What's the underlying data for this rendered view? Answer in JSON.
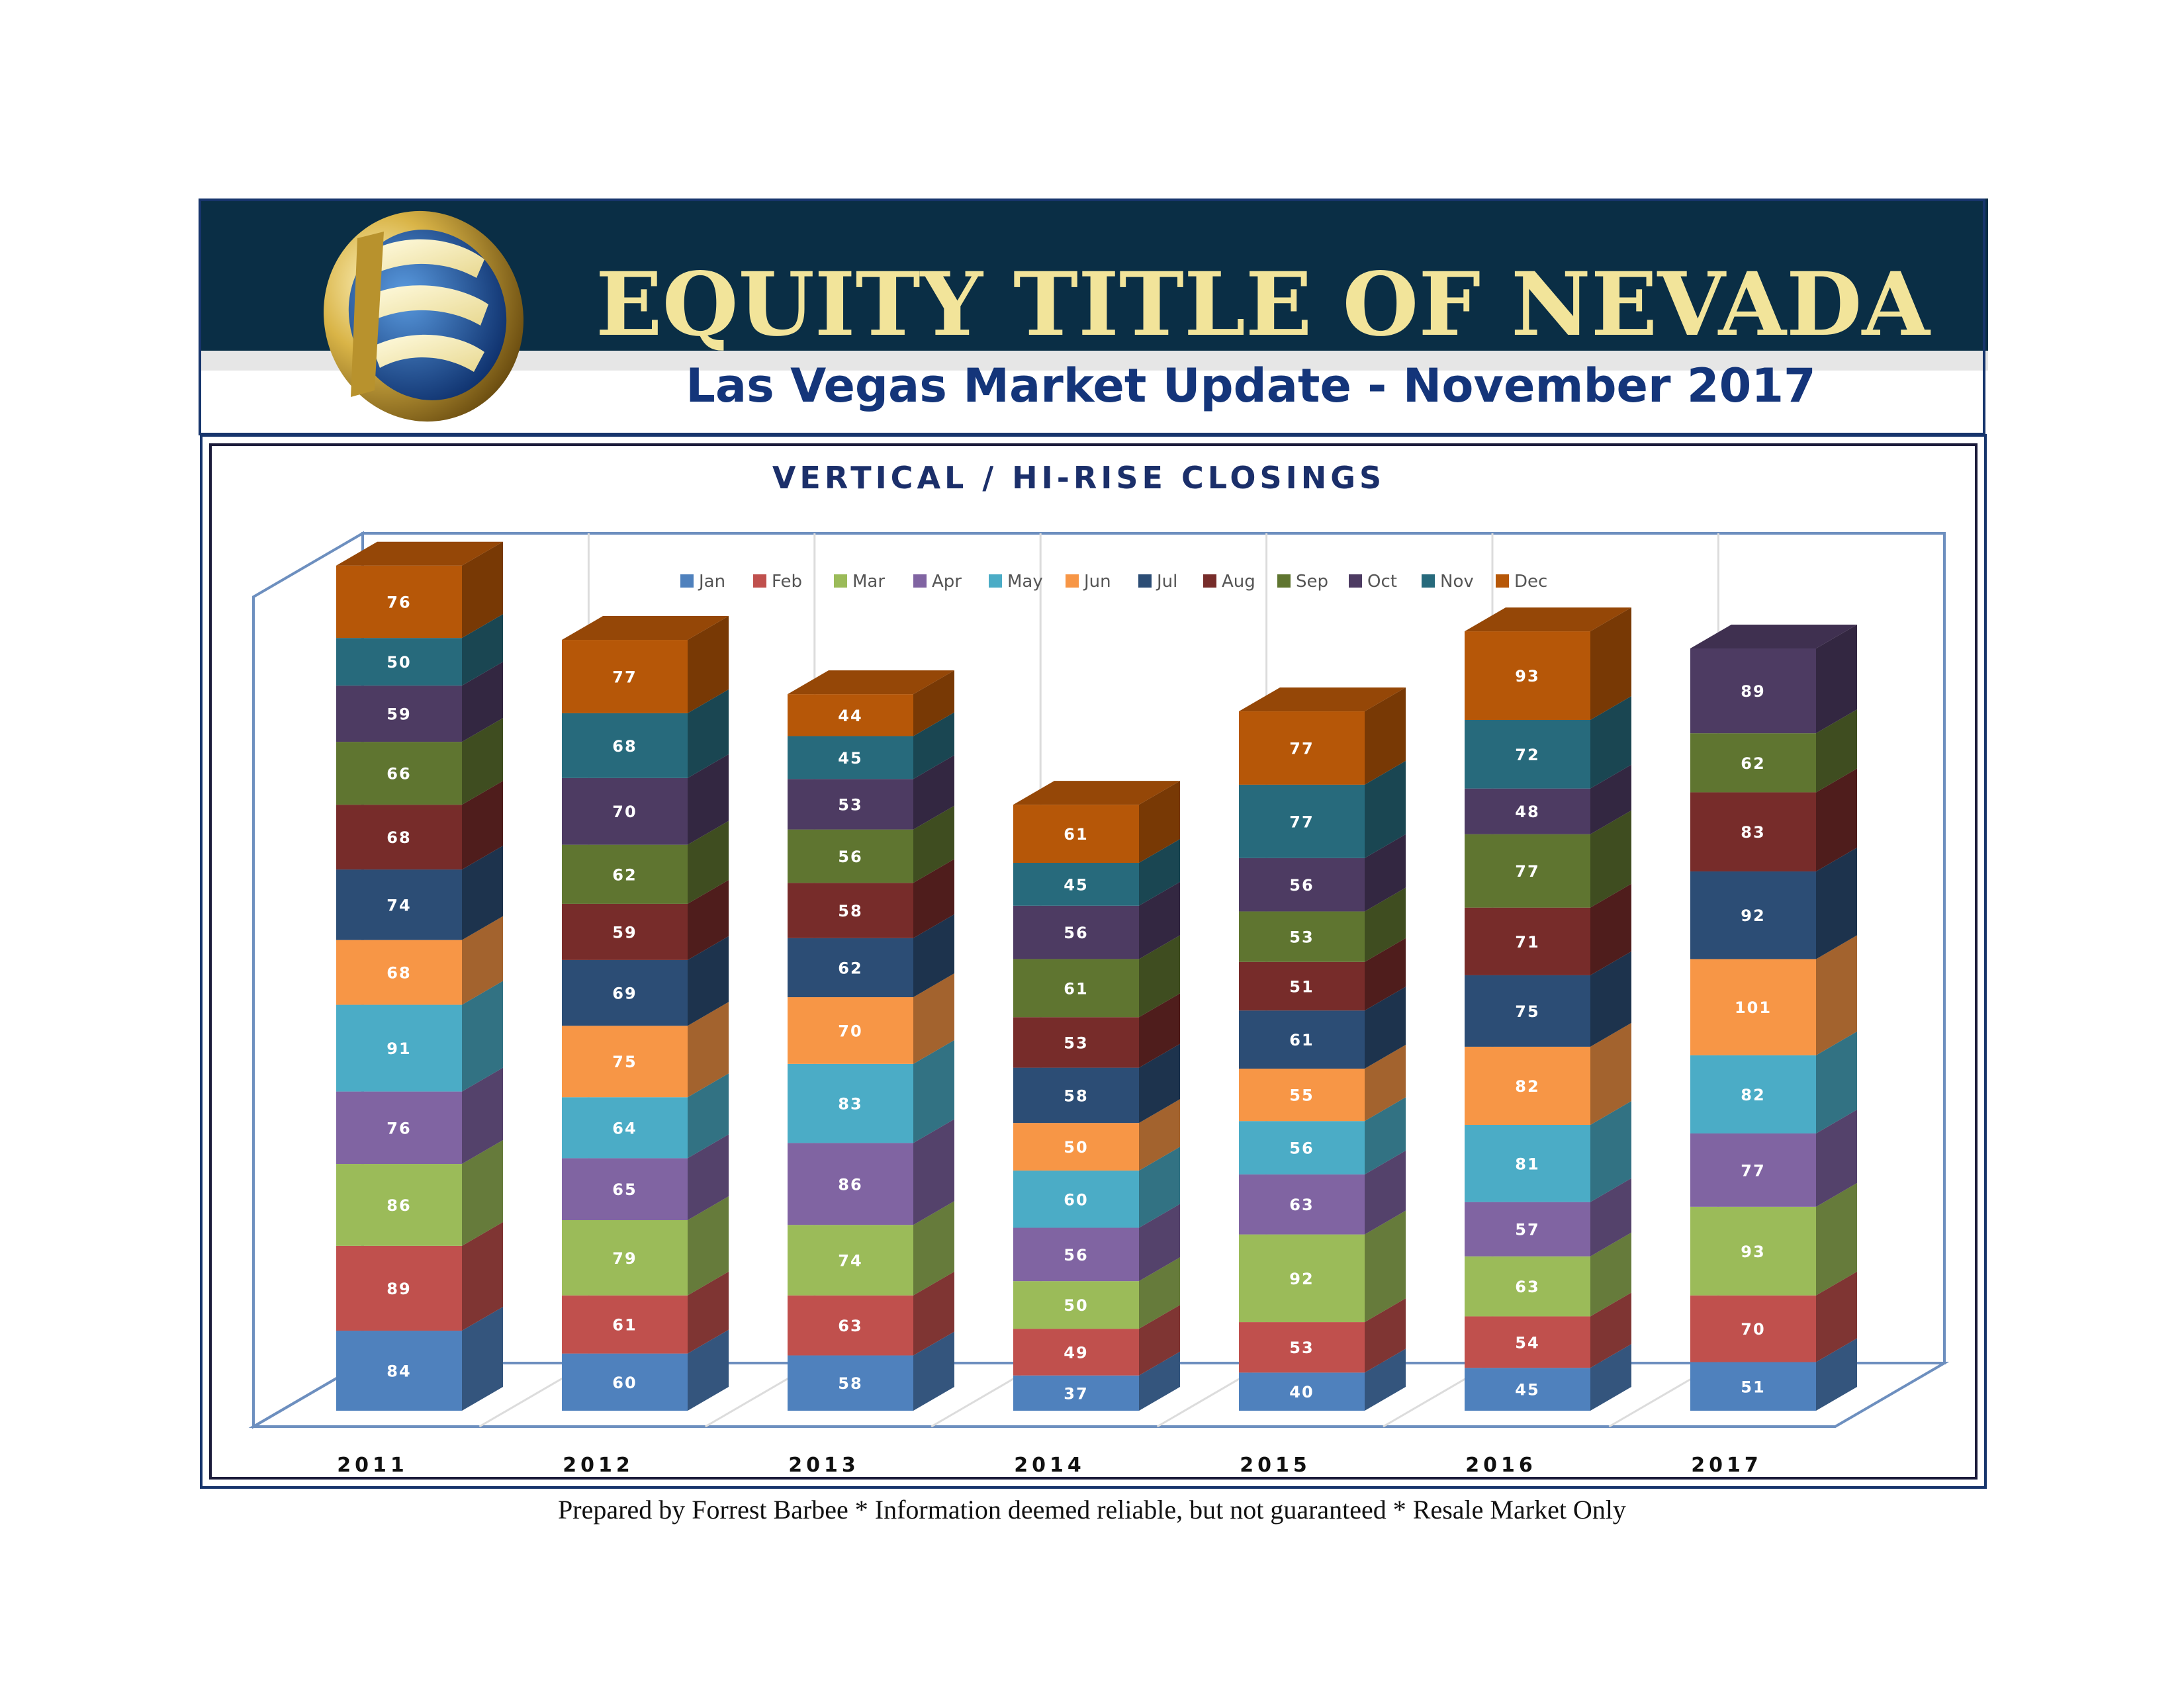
{
  "header": {
    "company_name": "EQUITY TITLE OF NEVADA",
    "report_title": "Las Vegas Market Update - November 2017",
    "banner_color": "#0a2e45",
    "title_color": "#f2e49a",
    "subtitle_color": "#14357a"
  },
  "logo": {
    "icon": "equity-title-logo-icon"
  },
  "footer": {
    "note": "Prepared by Forrest Barbee * Information deemed reliable, but not guaranteed * Resale Market Only"
  },
  "chart_data": {
    "type": "bar",
    "stacked": true,
    "three_d": true,
    "title": "VERTICAL / HI-RISE CLOSINGS",
    "xlabel": "",
    "ylabel": "",
    "legend_position": "top",
    "data_labels": true,
    "categories": [
      "2011",
      "2012",
      "2013",
      "2014",
      "2015",
      "2016",
      "2017"
    ],
    "series": [
      {
        "name": "Jan",
        "color": "#4f81bd",
        "values": [
          84,
          60,
          58,
          37,
          40,
          45,
          51
        ]
      },
      {
        "name": "Feb",
        "color": "#c0504d",
        "values": [
          89,
          61,
          63,
          49,
          53,
          54,
          70
        ]
      },
      {
        "name": "Mar",
        "color": "#9bbb59",
        "values": [
          86,
          79,
          74,
          50,
          92,
          63,
          93
        ]
      },
      {
        "name": "Apr",
        "color": "#8064a2",
        "values": [
          76,
          65,
          86,
          56,
          63,
          57,
          77
        ]
      },
      {
        "name": "May",
        "color": "#4bacc6",
        "values": [
          91,
          64,
          83,
          60,
          56,
          81,
          82
        ]
      },
      {
        "name": "Jun",
        "color": "#f79646",
        "values": [
          68,
          75,
          70,
          50,
          55,
          82,
          101
        ]
      },
      {
        "name": "Jul",
        "color": "#2c4d75",
        "values": [
          74,
          69,
          62,
          58,
          61,
          75,
          92
        ]
      },
      {
        "name": "Aug",
        "color": "#772c2a",
        "values": [
          68,
          59,
          58,
          53,
          51,
          71,
          83
        ]
      },
      {
        "name": "Sep",
        "color": "#5f7530",
        "values": [
          66,
          62,
          56,
          61,
          53,
          77,
          62
        ]
      },
      {
        "name": "Oct",
        "color": "#4d3b62",
        "values": [
          59,
          70,
          53,
          56,
          56,
          48,
          89
        ]
      },
      {
        "name": "Nov",
        "color": "#276a7c",
        "values": [
          50,
          68,
          45,
          45,
          77,
          72,
          null
        ]
      },
      {
        "name": "Dec",
        "color": "#b65708",
        "values": [
          76,
          77,
          44,
          61,
          77,
          93,
          null
        ]
      }
    ]
  }
}
